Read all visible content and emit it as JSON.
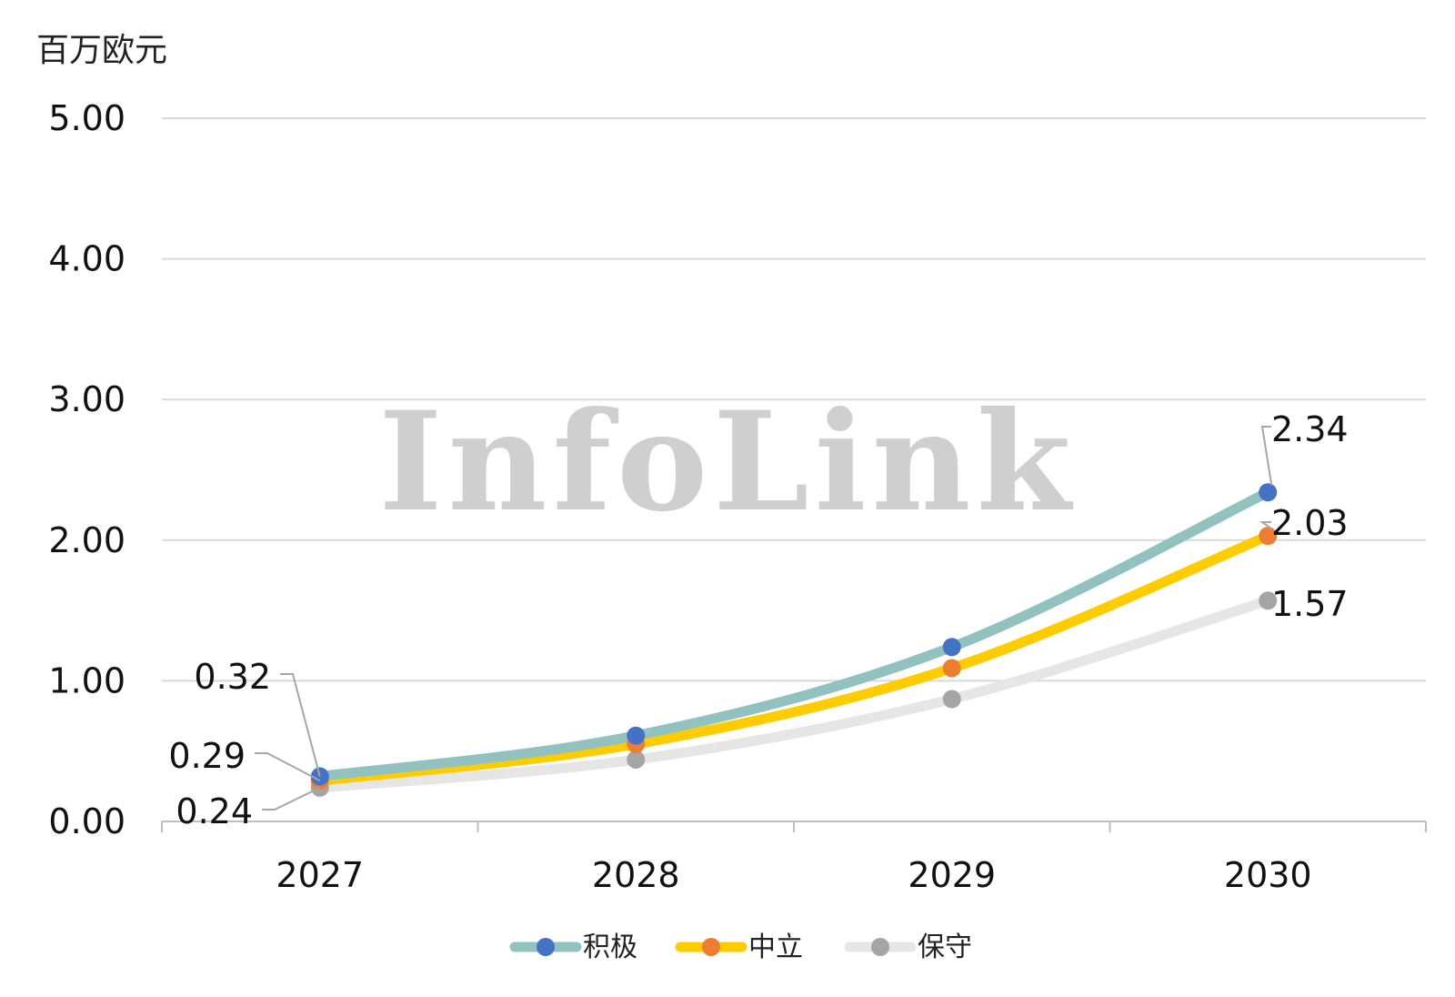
{
  "unit_label": "百万欧元",
  "watermark": "InfoLink",
  "chart_data": {
    "type": "line",
    "title": "",
    "xlabel": "",
    "ylabel": "百万欧元",
    "categories": [
      "2027",
      "2028",
      "2029",
      "2030"
    ],
    "ylim": [
      0,
      5
    ],
    "y_ticks": [
      "0.00",
      "1.00",
      "2.00",
      "3.00",
      "4.00",
      "5.00"
    ],
    "grid": true,
    "legend_position": "bottom",
    "series": [
      {
        "name": "积极",
        "values": [
          0.32,
          0.61,
          1.24,
          2.34
        ],
        "line_color": "#92c2c0",
        "marker_color": "#4472c4"
      },
      {
        "name": "中立",
        "values": [
          0.29,
          0.55,
          1.09,
          2.03
        ],
        "line_color": "#ffcc00",
        "marker_color": "#ed7d31"
      },
      {
        "name": "保守",
        "values": [
          0.24,
          0.44,
          0.87,
          1.57
        ],
        "line_color": "#e6e6e6",
        "marker_color": "#a5a5a5"
      }
    ],
    "data_labels": {
      "积极": {
        "2027": "0.32",
        "2030": "2.34"
      },
      "中立": {
        "2027": "0.29",
        "2030": "2.03"
      },
      "保守": {
        "2027": "0.24",
        "2030": "1.57"
      }
    }
  }
}
